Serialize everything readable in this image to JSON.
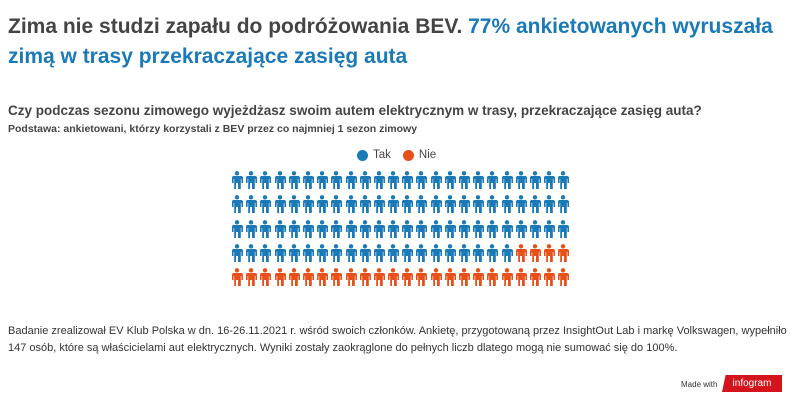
{
  "header": {
    "title_plain": "Zima nie studzi zapału do podróżowania BEV.",
    "title_highlight": "77% ankietowanych wyruszała zimą w trasy przekraczające zasięg auta"
  },
  "question": "Czy podczas sezonu zimowego wyjeżdżasz swoim autem elektrycznym w trasy, przekraczające zasięg auta?",
  "subtitle": "Podstawa: ankietowani, którzy korzystali z BEV przez co najmniej 1 sezon zimowy",
  "chart_data": {
    "type": "pictogram",
    "icon": "person-icon",
    "total_icons": 120,
    "columns": 24,
    "series": [
      {
        "name": "Tak",
        "icons": 92,
        "percent": 77,
        "color": "#1a7ab8"
      },
      {
        "name": "Nie",
        "icons": 28,
        "percent": 23,
        "color": "#e8501a"
      }
    ],
    "legend": "top"
  },
  "footer": "Badanie zrealizował EV Klub Polska w dn. 16-26.11.2021 r. wśród swoich członków. Ankietę, przygotowaną przez InsightOut Lab i markę Volkswagen, wypełniło 147 osób, które są właścicielami aut elektrycznych. Wyniki zostały zaokrąglone do pełnych liczb dlatego mogą nie sumować się do 100%.",
  "branding": {
    "made_with": "Made with",
    "logo": "infogram"
  }
}
